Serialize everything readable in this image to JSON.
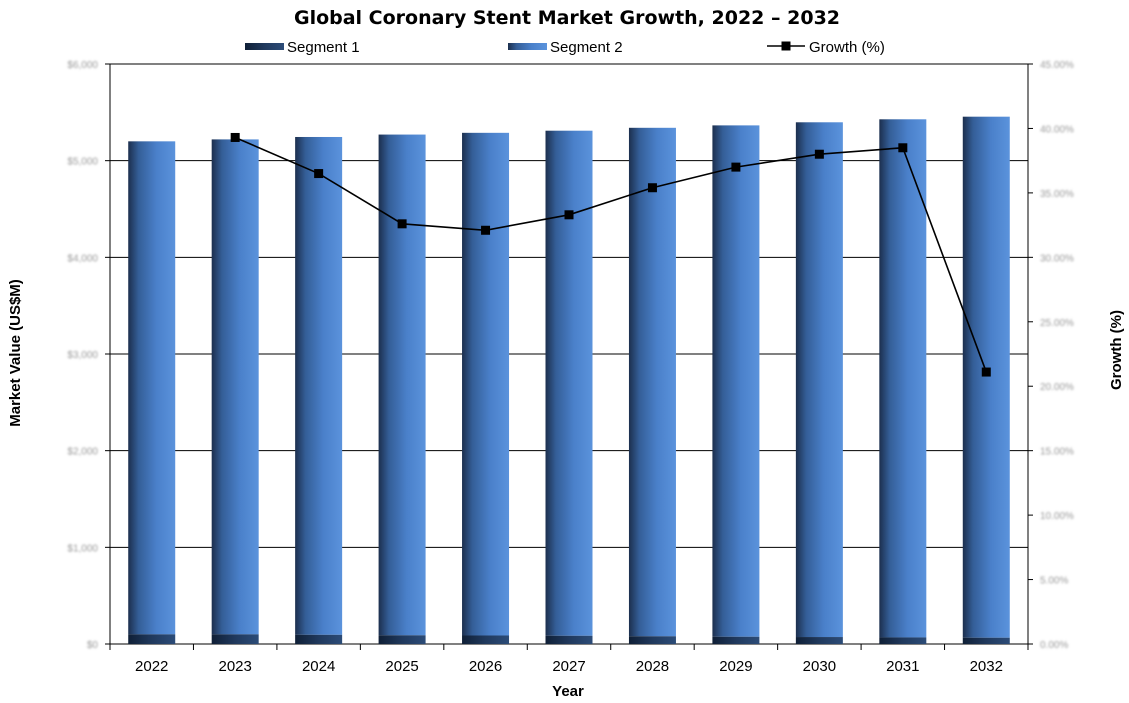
{
  "chart_data": {
    "type": "bar",
    "title": "Global Coronary Stent Market Growth, 2022 – 2032",
    "xlabel": "Year",
    "ylabel": "Market Value (US$M)",
    "y2label": "Growth (%)",
    "categories": [
      "2022",
      "2023",
      "2024",
      "2025",
      "2026",
      "2027",
      "2028",
      "2029",
      "2030",
      "2031",
      "2032"
    ],
    "stacked": true,
    "ylim": [
      0,
      6000
    ],
    "y2lim": [
      0,
      0.45
    ],
    "series": [
      {
        "name": "Segment 1",
        "axis": "left",
        "color": "#1f3a5c",
        "values": [
          100,
          100,
          95,
          90,
          88,
          85,
          80,
          75,
          72,
          68,
          65
        ]
      },
      {
        "name": "Segment 2",
        "axis": "left",
        "color": "#4f86d0",
        "values": [
          5100,
          5120,
          5150,
          5180,
          5200,
          5225,
          5260,
          5290,
          5325,
          5360,
          5390
        ]
      },
      {
        "name": "Growth (%)",
        "axis": "right",
        "type": "line",
        "color": "#000000",
        "values": [
          null,
          0.393,
          0.365,
          0.326,
          0.321,
          0.333,
          0.354,
          0.37,
          0.38,
          0.385,
          0.211
        ]
      }
    ],
    "legend": "top",
    "grid": true,
    "left_tick_labels_note": "",
    "right_tick_labels_note": ""
  }
}
